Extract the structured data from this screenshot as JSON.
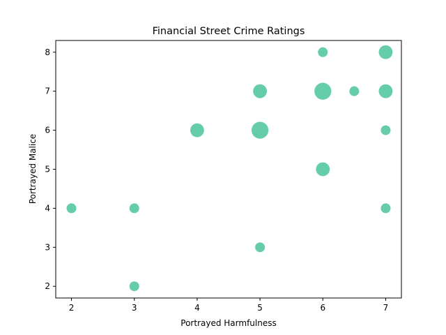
{
  "chart_data": {
    "type": "scatter",
    "title": "Financial Street Crime Ratings",
    "xlabel": "Portrayed Harmfulness",
    "ylabel": "Portrayed Malice",
    "xlim": [
      1.75,
      7.25
    ],
    "ylim": [
      1.7,
      8.3
    ],
    "xticks": [
      2,
      3,
      4,
      5,
      6,
      7
    ],
    "yticks": [
      2,
      3,
      4,
      5,
      6,
      7,
      8
    ],
    "grid": false,
    "marker_color": "#66cdaa",
    "points": [
      {
        "x": 2,
        "y": 4,
        "count": 1
      },
      {
        "x": 3,
        "y": 2,
        "count": 1
      },
      {
        "x": 3,
        "y": 4,
        "count": 1
      },
      {
        "x": 4,
        "y": 6,
        "count": 2
      },
      {
        "x": 5,
        "y": 3,
        "count": 1
      },
      {
        "x": 5,
        "y": 6,
        "count": 3
      },
      {
        "x": 5,
        "y": 7,
        "count": 2
      },
      {
        "x": 6,
        "y": 5,
        "count": 2
      },
      {
        "x": 6,
        "y": 7,
        "count": 3
      },
      {
        "x": 6,
        "y": 8,
        "count": 1
      },
      {
        "x": 6.5,
        "y": 7,
        "count": 1
      },
      {
        "x": 7,
        "y": 4,
        "count": 1
      },
      {
        "x": 7,
        "y": 6,
        "count": 1
      },
      {
        "x": 7,
        "y": 7,
        "count": 2
      },
      {
        "x": 7,
        "y": 8,
        "count": 2
      }
    ]
  }
}
